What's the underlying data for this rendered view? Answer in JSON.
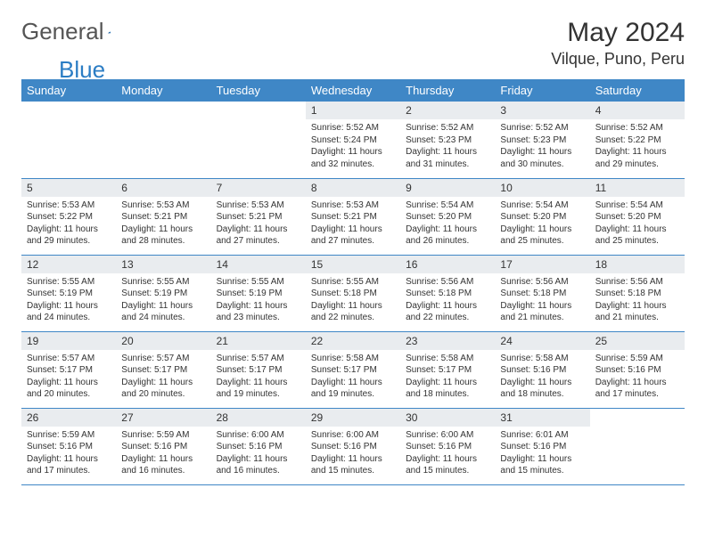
{
  "logo": {
    "text_general": "General",
    "text_blue": "Blue"
  },
  "header": {
    "month_title": "May 2024",
    "location": "Vilque, Puno, Peru"
  },
  "colors": {
    "header_bg": "#3f87c6",
    "header_text": "#ffffff",
    "daynum_bg": "#e9ecef",
    "border": "#3f87c6",
    "text": "#333333",
    "logo_blue": "#2b7dc4",
    "logo_gray": "#555555",
    "page_bg": "#ffffff"
  },
  "weekdays": [
    "Sunday",
    "Monday",
    "Tuesday",
    "Wednesday",
    "Thursday",
    "Friday",
    "Saturday"
  ],
  "weeks": [
    [
      {
        "n": "",
        "lines": []
      },
      {
        "n": "",
        "lines": []
      },
      {
        "n": "",
        "lines": []
      },
      {
        "n": "1",
        "lines": [
          "Sunrise: 5:52 AM",
          "Sunset: 5:24 PM",
          "Daylight: 11 hours and 32 minutes."
        ]
      },
      {
        "n": "2",
        "lines": [
          "Sunrise: 5:52 AM",
          "Sunset: 5:23 PM",
          "Daylight: 11 hours and 31 minutes."
        ]
      },
      {
        "n": "3",
        "lines": [
          "Sunrise: 5:52 AM",
          "Sunset: 5:23 PM",
          "Daylight: 11 hours and 30 minutes."
        ]
      },
      {
        "n": "4",
        "lines": [
          "Sunrise: 5:52 AM",
          "Sunset: 5:22 PM",
          "Daylight: 11 hours and 29 minutes."
        ]
      }
    ],
    [
      {
        "n": "5",
        "lines": [
          "Sunrise: 5:53 AM",
          "Sunset: 5:22 PM",
          "Daylight: 11 hours and 29 minutes."
        ]
      },
      {
        "n": "6",
        "lines": [
          "Sunrise: 5:53 AM",
          "Sunset: 5:21 PM",
          "Daylight: 11 hours and 28 minutes."
        ]
      },
      {
        "n": "7",
        "lines": [
          "Sunrise: 5:53 AM",
          "Sunset: 5:21 PM",
          "Daylight: 11 hours and 27 minutes."
        ]
      },
      {
        "n": "8",
        "lines": [
          "Sunrise: 5:53 AM",
          "Sunset: 5:21 PM",
          "Daylight: 11 hours and 27 minutes."
        ]
      },
      {
        "n": "9",
        "lines": [
          "Sunrise: 5:54 AM",
          "Sunset: 5:20 PM",
          "Daylight: 11 hours and 26 minutes."
        ]
      },
      {
        "n": "10",
        "lines": [
          "Sunrise: 5:54 AM",
          "Sunset: 5:20 PM",
          "Daylight: 11 hours and 25 minutes."
        ]
      },
      {
        "n": "11",
        "lines": [
          "Sunrise: 5:54 AM",
          "Sunset: 5:20 PM",
          "Daylight: 11 hours and 25 minutes."
        ]
      }
    ],
    [
      {
        "n": "12",
        "lines": [
          "Sunrise: 5:55 AM",
          "Sunset: 5:19 PM",
          "Daylight: 11 hours and 24 minutes."
        ]
      },
      {
        "n": "13",
        "lines": [
          "Sunrise: 5:55 AM",
          "Sunset: 5:19 PM",
          "Daylight: 11 hours and 24 minutes."
        ]
      },
      {
        "n": "14",
        "lines": [
          "Sunrise: 5:55 AM",
          "Sunset: 5:19 PM",
          "Daylight: 11 hours and 23 minutes."
        ]
      },
      {
        "n": "15",
        "lines": [
          "Sunrise: 5:55 AM",
          "Sunset: 5:18 PM",
          "Daylight: 11 hours and 22 minutes."
        ]
      },
      {
        "n": "16",
        "lines": [
          "Sunrise: 5:56 AM",
          "Sunset: 5:18 PM",
          "Daylight: 11 hours and 22 minutes."
        ]
      },
      {
        "n": "17",
        "lines": [
          "Sunrise: 5:56 AM",
          "Sunset: 5:18 PM",
          "Daylight: 11 hours and 21 minutes."
        ]
      },
      {
        "n": "18",
        "lines": [
          "Sunrise: 5:56 AM",
          "Sunset: 5:18 PM",
          "Daylight: 11 hours and 21 minutes."
        ]
      }
    ],
    [
      {
        "n": "19",
        "lines": [
          "Sunrise: 5:57 AM",
          "Sunset: 5:17 PM",
          "Daylight: 11 hours and 20 minutes."
        ]
      },
      {
        "n": "20",
        "lines": [
          "Sunrise: 5:57 AM",
          "Sunset: 5:17 PM",
          "Daylight: 11 hours and 20 minutes."
        ]
      },
      {
        "n": "21",
        "lines": [
          "Sunrise: 5:57 AM",
          "Sunset: 5:17 PM",
          "Daylight: 11 hours and 19 minutes."
        ]
      },
      {
        "n": "22",
        "lines": [
          "Sunrise: 5:58 AM",
          "Sunset: 5:17 PM",
          "Daylight: 11 hours and 19 minutes."
        ]
      },
      {
        "n": "23",
        "lines": [
          "Sunrise: 5:58 AM",
          "Sunset: 5:17 PM",
          "Daylight: 11 hours and 18 minutes."
        ]
      },
      {
        "n": "24",
        "lines": [
          "Sunrise: 5:58 AM",
          "Sunset: 5:16 PM",
          "Daylight: 11 hours and 18 minutes."
        ]
      },
      {
        "n": "25",
        "lines": [
          "Sunrise: 5:59 AM",
          "Sunset: 5:16 PM",
          "Daylight: 11 hours and 17 minutes."
        ]
      }
    ],
    [
      {
        "n": "26",
        "lines": [
          "Sunrise: 5:59 AM",
          "Sunset: 5:16 PM",
          "Daylight: 11 hours and 17 minutes."
        ]
      },
      {
        "n": "27",
        "lines": [
          "Sunrise: 5:59 AM",
          "Sunset: 5:16 PM",
          "Daylight: 11 hours and 16 minutes."
        ]
      },
      {
        "n": "28",
        "lines": [
          "Sunrise: 6:00 AM",
          "Sunset: 5:16 PM",
          "Daylight: 11 hours and 16 minutes."
        ]
      },
      {
        "n": "29",
        "lines": [
          "Sunrise: 6:00 AM",
          "Sunset: 5:16 PM",
          "Daylight: 11 hours and 15 minutes."
        ]
      },
      {
        "n": "30",
        "lines": [
          "Sunrise: 6:00 AM",
          "Sunset: 5:16 PM",
          "Daylight: 11 hours and 15 minutes."
        ]
      },
      {
        "n": "31",
        "lines": [
          "Sunrise: 6:01 AM",
          "Sunset: 5:16 PM",
          "Daylight: 11 hours and 15 minutes."
        ]
      },
      {
        "n": "",
        "lines": []
      }
    ]
  ]
}
